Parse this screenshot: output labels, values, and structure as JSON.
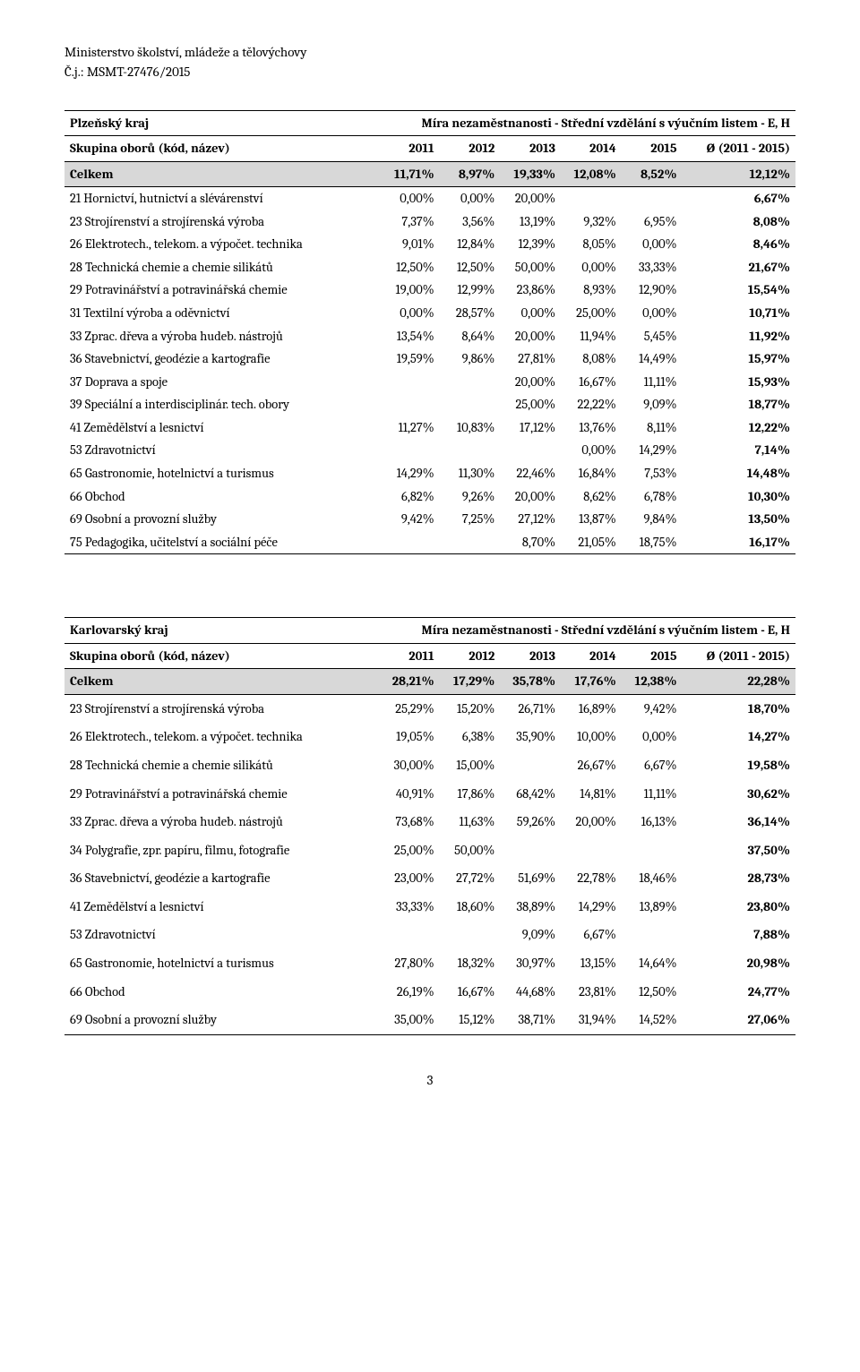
{
  "doc_header": {
    "dept": "Ministerstvo školství, mládeže a tělovýchovy",
    "ref": "Č.j.: MSMT-27476/2015"
  },
  "page_number": "3",
  "table1": {
    "region": "Plzeňský kraj",
    "title_right": "Míra nezaměstnanosti - Střední vzdělání s výučním listem - E, H",
    "head_label": "Skupina oborů (kód, název)",
    "years": [
      "2011",
      "2012",
      "2013",
      "2014",
      "2015"
    ],
    "avg_label": "Ø (2011 - 2015)",
    "celkem_label": "Celkem",
    "celkem": [
      "11,71%",
      "8,97%",
      "19,33%",
      "12,08%",
      "8,52%",
      "12,12%"
    ],
    "rows": [
      {
        "label": "21 Hornictví, hutnictví a slévárenství",
        "v": [
          "0,00%",
          "0,00%",
          "20,00%",
          "",
          "",
          "6,67%"
        ]
      },
      {
        "label": "23 Strojírenství a strojírenská výroba",
        "v": [
          "7,37%",
          "3,56%",
          "13,19%",
          "9,32%",
          "6,95%",
          "8,08%"
        ]
      },
      {
        "label": "26 Elektrotech., telekom. a výpočet. technika",
        "v": [
          "9,01%",
          "12,84%",
          "12,39%",
          "8,05%",
          "0,00%",
          "8,46%"
        ]
      },
      {
        "label": "28 Technická chemie a chemie silikátů",
        "v": [
          "12,50%",
          "12,50%",
          "50,00%",
          "0,00%",
          "33,33%",
          "21,67%"
        ]
      },
      {
        "label": "29 Potravinářství a potravinářská chemie",
        "v": [
          "19,00%",
          "12,99%",
          "23,86%",
          "8,93%",
          "12,90%",
          "15,54%"
        ]
      },
      {
        "label": "31 Textilní výroba a oděvnictví",
        "v": [
          "0,00%",
          "28,57%",
          "0,00%",
          "25,00%",
          "0,00%",
          "10,71%"
        ]
      },
      {
        "label": "33 Zprac. dřeva a výroba hudeb. nástrojů",
        "v": [
          "13,54%",
          "8,64%",
          "20,00%",
          "11,94%",
          "5,45%",
          "11,92%"
        ]
      },
      {
        "label": "36 Stavebnictví, geodézie a kartografie",
        "v": [
          "19,59%",
          "9,86%",
          "27,81%",
          "8,08%",
          "14,49%",
          "15,97%"
        ]
      },
      {
        "label": "37 Doprava a spoje",
        "v": [
          "",
          "",
          "20,00%",
          "16,67%",
          "11,11%",
          "15,93%"
        ]
      },
      {
        "label": "39 Speciální a interdisciplinár. tech. obory",
        "v": [
          "",
          "",
          "25,00%",
          "22,22%",
          "9,09%",
          "18,77%"
        ]
      },
      {
        "label": "41 Zemědělství a lesnictví",
        "v": [
          "11,27%",
          "10,83%",
          "17,12%",
          "13,76%",
          "8,11%",
          "12,22%"
        ]
      },
      {
        "label": "53 Zdravotnictví",
        "v": [
          "",
          "",
          "",
          "0,00%",
          "14,29%",
          "7,14%"
        ]
      },
      {
        "label": "65 Gastronomie, hotelnictví a turismus",
        "v": [
          "14,29%",
          "11,30%",
          "22,46%",
          "16,84%",
          "7,53%",
          "14,48%"
        ]
      },
      {
        "label": "66 Obchod",
        "v": [
          "6,82%",
          "9,26%",
          "20,00%",
          "8,62%",
          "6,78%",
          "10,30%"
        ]
      },
      {
        "label": "69 Osobní a provozní služby",
        "v": [
          "9,42%",
          "7,25%",
          "27,12%",
          "13,87%",
          "9,84%",
          "13,50%"
        ]
      },
      {
        "label": "75 Pedagogika, učitelství a sociální péče",
        "v": [
          "",
          "",
          "8,70%",
          "21,05%",
          "18,75%",
          "16,17%"
        ]
      }
    ],
    "col_widths_pct": [
      43,
      8.3,
      8.3,
      8.3,
      8.3,
      8.3,
      15.5
    ],
    "shaded_bg": "#d8d8d8",
    "border_color": "#000000"
  },
  "table2": {
    "region": "Karlovarský kraj",
    "title_right": "Míra nezaměstnanosti - Střední vzdělání s výučním listem - E, H",
    "head_label": "Skupina oborů (kód, název)",
    "years": [
      "2011",
      "2012",
      "2013",
      "2014",
      "2015"
    ],
    "avg_label": "Ø (2011 - 2015)",
    "celkem_label": "Celkem",
    "celkem": [
      "28,21%",
      "17,29%",
      "35,78%",
      "17,76%",
      "12,38%",
      "22,28%"
    ],
    "rows": [
      {
        "label": "23 Strojírenství a strojírenská výroba",
        "v": [
          "25,29%",
          "15,20%",
          "26,71%",
          "16,89%",
          "9,42%",
          "18,70%"
        ]
      },
      {
        "label": "26 Elektrotech., telekom. a výpočet. technika",
        "v": [
          "19,05%",
          "6,38%",
          "35,90%",
          "10,00%",
          "0,00%",
          "14,27%"
        ]
      },
      {
        "label": "28 Technická chemie a chemie silikátů",
        "v": [
          "30,00%",
          "15,00%",
          "",
          "26,67%",
          "6,67%",
          "19,58%"
        ]
      },
      {
        "label": "29 Potravinářství a potravinářská chemie",
        "v": [
          "40,91%",
          "17,86%",
          "68,42%",
          "14,81%",
          "11,11%",
          "30,62%"
        ]
      },
      {
        "label": "33 Zprac. dřeva a výroba hudeb. nástrojů",
        "v": [
          "73,68%",
          "11,63%",
          "59,26%",
          "20,00%",
          "16,13%",
          "36,14%"
        ]
      },
      {
        "label": "34 Polygrafie, zpr. papíru, filmu, fotografie",
        "v": [
          "25,00%",
          "50,00%",
          "",
          "",
          "",
          "37,50%"
        ]
      },
      {
        "label": "36 Stavebnictví, geodézie a kartografie",
        "v": [
          "23,00%",
          "27,72%",
          "51,69%",
          "22,78%",
          "18,46%",
          "28,73%"
        ]
      },
      {
        "label": "41 Zemědělství a lesnictví",
        "v": [
          "33,33%",
          "18,60%",
          "38,89%",
          "14,29%",
          "13,89%",
          "23,80%"
        ]
      },
      {
        "label": "53 Zdravotnictví",
        "v": [
          "",
          "",
          "9,09%",
          "6,67%",
          "",
          "7,88%"
        ]
      },
      {
        "label": "65 Gastronomie, hotelnictví a turismus",
        "v": [
          "27,80%",
          "18,32%",
          "30,97%",
          "13,15%",
          "14,64%",
          "20,98%"
        ]
      },
      {
        "label": "66 Obchod",
        "v": [
          "26,19%",
          "16,67%",
          "44,68%",
          "23,81%",
          "12,50%",
          "24,77%"
        ]
      },
      {
        "label": "69 Osobní a provozní služby",
        "v": [
          "35,00%",
          "15,12%",
          "38,71%",
          "31,94%",
          "14,52%",
          "27,06%"
        ]
      }
    ]
  }
}
